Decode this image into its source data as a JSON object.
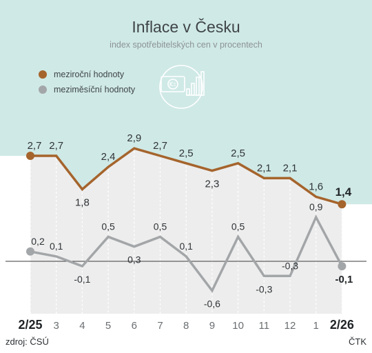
{
  "title": "Inflace v Česku",
  "subtitle": "index spotřebitelských cen v procentech",
  "legend": [
    {
      "label": "meziroční hodnoty",
      "color": "#a5642c"
    },
    {
      "label": "meziměsíční hodnoty",
      "color": "#a3a6a8"
    }
  ],
  "source": "zdroj: ČSÚ",
  "agency": "ČTK",
  "colors": {
    "header_bg": "#cfe9e6",
    "plot_bg": "#ededed",
    "annual": "#a5642c",
    "monthly": "#a3a6a8",
    "icon": "#ffffff"
  },
  "icon": "money-chart-icon",
  "chart_data": {
    "type": "line",
    "categories": [
      "2/25",
      "3",
      "4",
      "5",
      "6",
      "7",
      "8",
      "9",
      "10",
      "11",
      "12",
      "1",
      "2/26"
    ],
    "series": [
      {
        "name": "meziroční hodnoty",
        "values": [
          2.7,
          2.7,
          1.8,
          2.4,
          2.9,
          2.7,
          2.5,
          2.3,
          2.5,
          2.1,
          2.1,
          1.6,
          1.4
        ],
        "labels": [
          "2,7",
          "2,7",
          "1,8",
          "2,4",
          "2,9",
          "2,7",
          "2,5",
          "2,3",
          "2,5",
          "2,1",
          "2,1",
          "1,6",
          "1,4"
        ]
      },
      {
        "name": "meziměsíční hodnoty",
        "values": [
          0.2,
          0.1,
          -0.1,
          0.5,
          0.3,
          0.5,
          0.1,
          -0.6,
          0.5,
          -0.3,
          -0.3,
          0.9,
          -0.1
        ],
        "labels": [
          "0,2",
          "0,1",
          "-0,1",
          "0,5",
          "0,3",
          "0,5",
          "0,1",
          "-0,6",
          "0,5",
          "-0,3",
          "-0,3",
          "0,9",
          "-0,1"
        ]
      }
    ],
    "bold_categories": [
      "2/25",
      "2/26"
    ],
    "grid": "vertical"
  }
}
